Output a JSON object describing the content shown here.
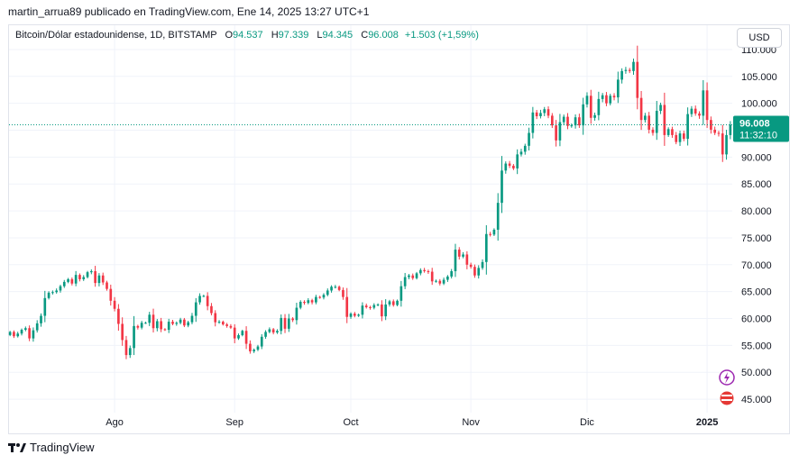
{
  "header": {
    "text": "martin_arrua89 publicado en TradingView.com, Ene 14, 2025 13:27 UTC+1"
  },
  "legend": {
    "symbol": "Bitcoin/Dólar estadounidense, 1D, BITSTAMP",
    "open_label": "O",
    "open": "94.537",
    "high_label": "H",
    "high": "97.339",
    "low_label": "L",
    "low": "94.345",
    "close_label": "C",
    "close": "96.008",
    "change": "+1.503 (+1,59%)"
  },
  "currency_button": "USD",
  "footer": {
    "brand": "TradingView",
    "logo_mark": "TV"
  },
  "colors": {
    "up": "#089981",
    "down": "#f23645",
    "grid": "#f0f3fa",
    "axis_text": "#131722",
    "price_badge": "#089981",
    "event_purple": "#9c27b0",
    "event_red": "#e53935"
  },
  "chart_data": {
    "type": "candlestick",
    "title": "Bitcoin/Dólar estadounidense, 1D, BITSTAMP",
    "ylim": [
      42500,
      111500
    ],
    "y_ticks": [
      45000,
      50000,
      55000,
      60000,
      65000,
      70000,
      75000,
      80000,
      85000,
      90000,
      95000,
      100000,
      105000,
      110000
    ],
    "y_tick_labels": [
      "45.000",
      "50.000",
      "55.000",
      "60.000",
      "65.000",
      "70.000",
      "75.000",
      "80.000",
      "85.000",
      "90.000",
      "95.000",
      "100.000",
      "105.000",
      "110.000"
    ],
    "x_tick_labels": [
      {
        "label": "Ago",
        "day_index": 27
      },
      {
        "label": "Sep",
        "day_index": 58
      },
      {
        "label": "Oct",
        "day_index": 88
      },
      {
        "label": "Nov",
        "day_index": 119
      },
      {
        "label": "Dic",
        "day_index": 149
      },
      {
        "label": "2025",
        "day_index": 180
      }
    ],
    "last_price": 96008,
    "last_price_label": "96.008",
    "countdown_label": "11:32:10",
    "closes": [
      57500,
      56700,
      57200,
      57900,
      58200,
      56300,
      57800,
      59100,
      60500,
      63800,
      64800,
      64900,
      65200,
      66000,
      66800,
      67300,
      66500,
      68100,
      67300,
      67700,
      68600,
      68800,
      66600,
      68000,
      66700,
      65500,
      63300,
      61800,
      59000,
      56000,
      53200,
      54500,
      58600,
      58300,
      59200,
      59200,
      60700,
      58200,
      59500,
      58000,
      57900,
      59400,
      59000,
      59200,
      59800,
      58700,
      59300,
      60500,
      63000,
      64200,
      64200,
      62300,
      61000,
      59300,
      59400,
      58900,
      58600,
      58300,
      56300,
      56900,
      57700,
      55300,
      53900,
      54200,
      54800,
      56600,
      57500,
      58000,
      57400,
      57700,
      60100,
      58100,
      60000,
      59700,
      62000,
      63100,
      62900,
      63400,
      63000,
      64000,
      63900,
      64400,
      65200,
      65900,
      65900,
      65300,
      64000,
      60300,
      60900,
      60500,
      60700,
      62400,
      62100,
      62000,
      62500,
      62600,
      60400,
      62600,
      63200,
      62500,
      63300,
      66000,
      67700,
      68000,
      67500,
      68400,
      69000,
      68800,
      68700,
      66900,
      67000,
      66500,
      67200,
      67800,
      68800,
      72800,
      71500,
      71900,
      70000,
      69600,
      68000,
      69400,
      70500,
      75700,
      75600,
      76500,
      81500,
      87500,
      88800,
      88400,
      87900,
      90500,
      91000,
      92100,
      94500,
      98300,
      97600,
      98200,
      98900,
      97700,
      95900,
      93100,
      96500,
      97500,
      95800,
      95900,
      97400,
      95900,
      99800,
      101400,
      97300,
      97800,
      100800,
      101500,
      100000,
      101400,
      101100,
      104400,
      106000,
      106200,
      106000,
      107700,
      101000,
      96900,
      97700,
      95100,
      94500,
      98600,
      99700,
      94100,
      95200,
      94100,
      92800,
      94400,
      93400,
      98000,
      99000,
      98100,
      97700,
      102400,
      96900,
      95100,
      94500,
      94400,
      90500,
      94100,
      96008
    ]
  }
}
